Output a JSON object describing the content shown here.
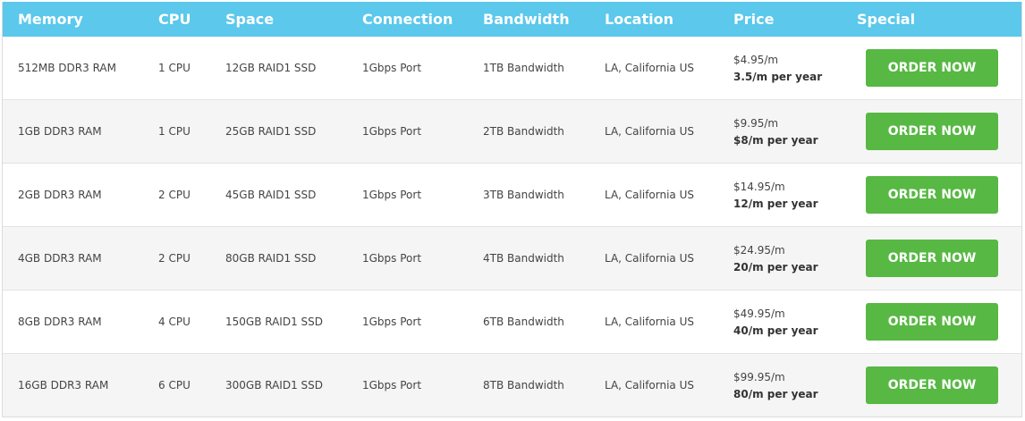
{
  "headers": [
    "Memory",
    "CPU",
    "Space",
    "Connection",
    "Bandwidth",
    "Location",
    "Price",
    "Special"
  ],
  "button_label": "ORDER NOW",
  "colors": {
    "header": "#5bc8ec",
    "button": "#57b843"
  },
  "rows": [
    {
      "memory": "512MB DDR3 RAM",
      "cpu": "1 CPU",
      "space": "12GB RAID1 SSD",
      "connection": "1Gbps Port",
      "bandwidth": "1TB Bandwidth",
      "location": "LA, California US",
      "price": "$4.95/m",
      "yearly": "3.5/m per year"
    },
    {
      "memory": "1GB DDR3 RAM",
      "cpu": "1 CPU",
      "space": "25GB RAID1 SSD",
      "connection": "1Gbps Port",
      "bandwidth": "2TB Bandwidth",
      "location": "LA, California US",
      "price": "$9.95/m",
      "yearly": "$8/m per year"
    },
    {
      "memory": "2GB DDR3 RAM",
      "cpu": "2 CPU",
      "space": "45GB RAID1 SSD",
      "connection": "1Gbps Port",
      "bandwidth": "3TB Bandwidth",
      "location": "LA, California US",
      "price": "$14.95/m",
      "yearly": "12/m per year"
    },
    {
      "memory": "4GB DDR3 RAM",
      "cpu": "2 CPU",
      "space": "80GB RAID1 SSD",
      "connection": "1Gbps Port",
      "bandwidth": "4TB Bandwidth",
      "location": "LA, California US",
      "price": "$24.95/m",
      "yearly": "20/m per year"
    },
    {
      "memory": "8GB DDR3 RAM",
      "cpu": "4 CPU",
      "space": "150GB RAID1 SSD",
      "connection": "1Gbps Port",
      "bandwidth": "6TB Bandwidth",
      "location": "LA, California US",
      "price": "$49.95/m",
      "yearly": "40/m per year"
    },
    {
      "memory": "16GB DDR3 RAM",
      "cpu": "6 CPU",
      "space": "300GB RAID1 SSD",
      "connection": "1Gbps Port",
      "bandwidth": "8TB Bandwidth",
      "location": "LA, California US",
      "price": "$99.95/m",
      "yearly": "80/m per year"
    }
  ]
}
